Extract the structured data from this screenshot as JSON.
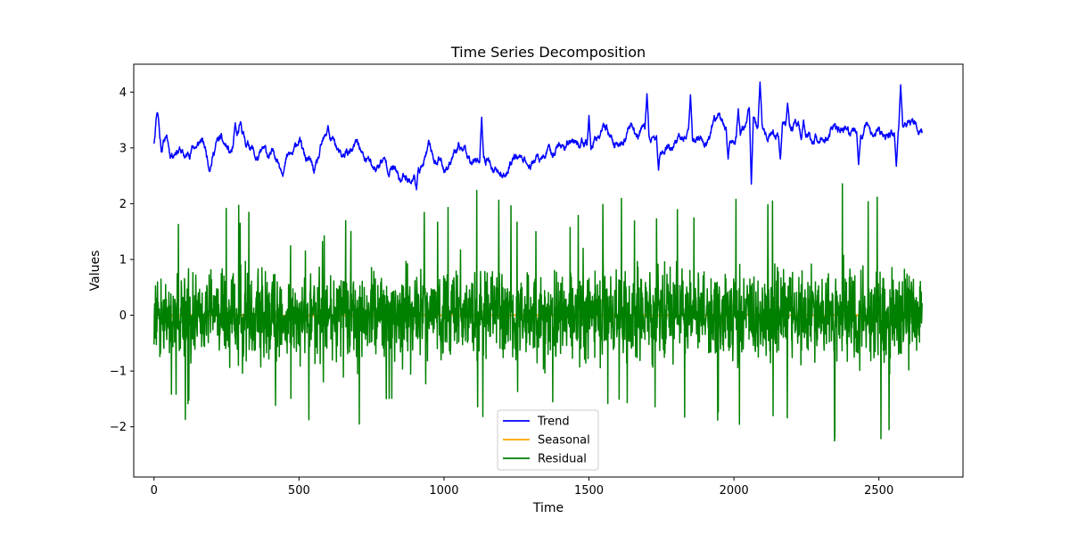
{
  "chart_data": {
    "type": "line",
    "title": "Time Series Decomposition",
    "xlabel": "Time",
    "ylabel": "Values",
    "xlim": [
      -70,
      2790
    ],
    "ylim": [
      -2.9,
      4.5
    ],
    "x_ticks": [
      0,
      500,
      1000,
      1500,
      2000,
      2500
    ],
    "y_ticks": [
      -2,
      -1,
      0,
      1,
      2,
      3,
      4
    ],
    "grid": false,
    "legend_position": "lower center",
    "n_points": 2650,
    "x_start": 0,
    "series": [
      {
        "name": "Trend",
        "color": "#0000ff",
        "anchors": [
          [
            0,
            3.1
          ],
          [
            10,
            3.6
          ],
          [
            25,
            3.05
          ],
          [
            40,
            3.25
          ],
          [
            55,
            2.85
          ],
          [
            75,
            3.05
          ],
          [
            100,
            2.85
          ],
          [
            130,
            2.95
          ],
          [
            160,
            3.15
          ],
          [
            190,
            2.75
          ],
          [
            230,
            3.2
          ],
          [
            260,
            2.85
          ],
          [
            300,
            3.3
          ],
          [
            350,
            2.85
          ],
          [
            400,
            2.9
          ],
          [
            450,
            2.7
          ],
          [
            500,
            3.1
          ],
          [
            550,
            2.55
          ],
          [
            600,
            3.25
          ],
          [
            650,
            2.8
          ],
          [
            700,
            3.05
          ],
          [
            750,
            2.65
          ],
          [
            800,
            2.75
          ],
          [
            850,
            2.45
          ],
          [
            900,
            2.5
          ],
          [
            950,
            2.95
          ],
          [
            1000,
            2.65
          ],
          [
            1050,
            3.0
          ],
          [
            1100,
            2.85
          ],
          [
            1150,
            2.75
          ],
          [
            1200,
            2.45
          ],
          [
            1250,
            2.9
          ],
          [
            1300,
            2.7
          ],
          [
            1350,
            2.85
          ],
          [
            1400,
            3.05
          ],
          [
            1450,
            3.15
          ],
          [
            1500,
            2.95
          ],
          [
            1550,
            3.3
          ],
          [
            1600,
            3.05
          ],
          [
            1650,
            3.35
          ],
          [
            1700,
            3.25
          ],
          [
            1750,
            3.0
          ],
          [
            1800,
            3.1
          ],
          [
            1850,
            3.25
          ],
          [
            1900,
            3.05
          ],
          [
            1950,
            3.55
          ],
          [
            2000,
            3.05
          ],
          [
            2050,
            3.6
          ],
          [
            2100,
            3.3
          ],
          [
            2150,
            3.25
          ],
          [
            2200,
            3.35
          ],
          [
            2250,
            3.2
          ],
          [
            2300,
            3.15
          ],
          [
            2350,
            3.35
          ],
          [
            2400,
            3.25
          ],
          [
            2450,
            3.3
          ],
          [
            2500,
            3.25
          ],
          [
            2550,
            3.2
          ],
          [
            2600,
            3.5
          ],
          [
            2650,
            3.3
          ]
        ],
        "spikes": [
          [
            12,
            3.63
          ],
          [
            280,
            3.45
          ],
          [
            600,
            3.4
          ],
          [
            905,
            2.25
          ],
          [
            1130,
            3.55
          ],
          [
            1500,
            3.58
          ],
          [
            1700,
            3.97
          ],
          [
            1740,
            2.6
          ],
          [
            1850,
            3.95
          ],
          [
            1980,
            2.8
          ],
          [
            2015,
            3.7
          ],
          [
            2060,
            2.35
          ],
          [
            2090,
            4.18
          ],
          [
            2160,
            2.8
          ],
          [
            2185,
            3.8
          ],
          [
            2240,
            3.5
          ],
          [
            2430,
            2.7
          ],
          [
            2480,
            3.2
          ],
          [
            2560,
            2.67
          ],
          [
            2575,
            4.13
          ]
        ],
        "noise_amplitude": 0.12,
        "seed": 11
      },
      {
        "name": "Seasonal",
        "color": "#ffa500",
        "constant": 0.0,
        "noise_amplitude": 0.02,
        "seed": 23
      },
      {
        "name": "Residual",
        "color": "#008000",
        "center": 0.0,
        "spread": 0.55,
        "envelope": [
          [
            0,
            1.4
          ],
          [
            100,
            2.1
          ],
          [
            300,
            2.0
          ],
          [
            500,
            1.3
          ],
          [
            700,
            1.9
          ],
          [
            900,
            1.9
          ],
          [
            1150,
            2.3
          ],
          [
            1300,
            1.7
          ],
          [
            1500,
            2.1
          ],
          [
            1700,
            2.1
          ],
          [
            1900,
            2.1
          ],
          [
            2100,
            2.1
          ],
          [
            2300,
            2.5
          ],
          [
            2450,
            2.4
          ],
          [
            2650,
            2.2
          ]
        ],
        "low_envelope": [
          [
            0,
            -1.3
          ],
          [
            100,
            -1.9
          ],
          [
            300,
            -1.4
          ],
          [
            500,
            -1.9
          ],
          [
            700,
            -2.0
          ],
          [
            900,
            -1.4
          ],
          [
            1150,
            -1.9
          ],
          [
            1300,
            -1.6
          ],
          [
            1500,
            -1.5
          ],
          [
            1700,
            -1.9
          ],
          [
            1900,
            -2.0
          ],
          [
            2000,
            -2.1
          ],
          [
            2250,
            -1.9
          ],
          [
            2350,
            -2.5
          ],
          [
            2450,
            -2.5
          ],
          [
            2650,
            -2.0
          ]
        ],
        "seed": 47
      }
    ]
  }
}
